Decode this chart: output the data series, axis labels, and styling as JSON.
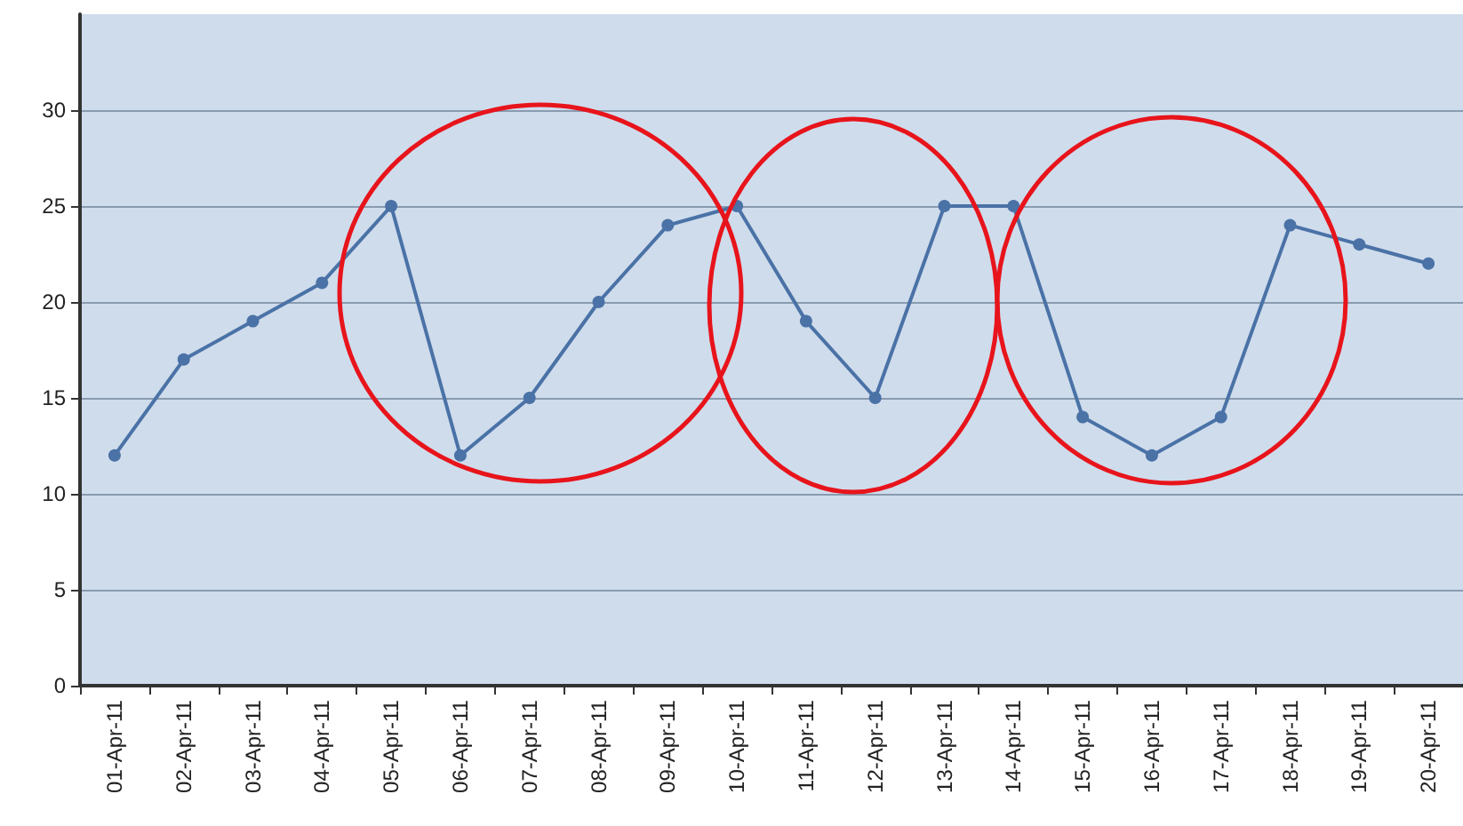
{
  "chart_data": {
    "type": "line",
    "categories": [
      "01-Apr-11",
      "02-Apr-11",
      "03-Apr-11",
      "04-Apr-11",
      "05-Apr-11",
      "06-Apr-11",
      "07-Apr-11",
      "08-Apr-11",
      "09-Apr-11",
      "10-Apr-11",
      "11-Apr-11",
      "12-Apr-11",
      "13-Apr-11",
      "14-Apr-11",
      "15-Apr-11",
      "16-Apr-11",
      "17-Apr-11",
      "18-Apr-11",
      "19-Apr-11",
      "20-Apr-11"
    ],
    "series": [
      {
        "color": "#4a72a6",
        "values": [
          12,
          17,
          19,
          21,
          25,
          12,
          15,
          20,
          24,
          25,
          19,
          15,
          25,
          25,
          14,
          12,
          14,
          24,
          23,
          22
        ]
      }
    ],
    "ylim": [
      0,
      35
    ],
    "yticks": [
      0,
      5,
      10,
      15,
      20,
      25,
      30
    ],
    "grid": "y",
    "marker": "circle",
    "line_style": "solid"
  }
}
